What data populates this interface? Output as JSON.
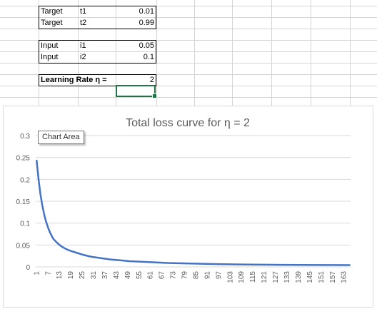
{
  "sheet": {
    "rows": [
      {
        "a": "Target",
        "b": "t1",
        "c": "0.01"
      },
      {
        "a": "Target",
        "b": "t2",
        "c": "0.99"
      },
      {
        "a": "Input",
        "b": "i1",
        "c": "0.05"
      },
      {
        "a": "Input",
        "b": "i2",
        "c": "0.1"
      }
    ],
    "learning_rate_label": "Learning Rate η =",
    "learning_rate_value": "2"
  },
  "chart_area_tooltip": "Chart Area",
  "colors": {
    "line": "#4472c4",
    "gridline": "#d9d9d9",
    "cell_grid": "#d4d4d4",
    "selection": "#217346"
  },
  "chart_data": {
    "type": "line",
    "title": "Total loss curve for  η = 2",
    "xlabel": "",
    "ylabel": "",
    "ylim": [
      0,
      0.3
    ],
    "yticks": [
      "0",
      "0.05",
      "0.1",
      "0.15",
      "0.2",
      "0.25",
      "0.3"
    ],
    "x_tick_labels": [
      "1",
      "7",
      "13",
      "19",
      "25",
      "31",
      "37",
      "43",
      "49",
      "55",
      "61",
      "67",
      "73",
      "79",
      "85",
      "91",
      "97",
      "103",
      "109",
      "115",
      "121",
      "127",
      "133",
      "139",
      "145",
      "151",
      "157",
      "163"
    ],
    "x_count": 166,
    "grid": true,
    "legend": "none",
    "series": [
      {
        "x": [
          1,
          2,
          3,
          4,
          5,
          6,
          7,
          8,
          9,
          10,
          12,
          14,
          16,
          18,
          20,
          23,
          26,
          30,
          35,
          40,
          45,
          50,
          60,
          70,
          80,
          90,
          100,
          110,
          120,
          130,
          140,
          150,
          166
        ],
        "values": [
          0.243,
          0.2,
          0.166,
          0.14,
          0.119,
          0.103,
          0.09,
          0.079,
          0.07,
          0.063,
          0.054,
          0.047,
          0.042,
          0.038,
          0.035,
          0.031,
          0.027,
          0.023,
          0.02,
          0.017,
          0.015,
          0.013,
          0.011,
          0.009,
          0.008,
          0.007,
          0.006,
          0.0055,
          0.005,
          0.0048,
          0.0045,
          0.0043,
          0.004
        ]
      }
    ]
  }
}
